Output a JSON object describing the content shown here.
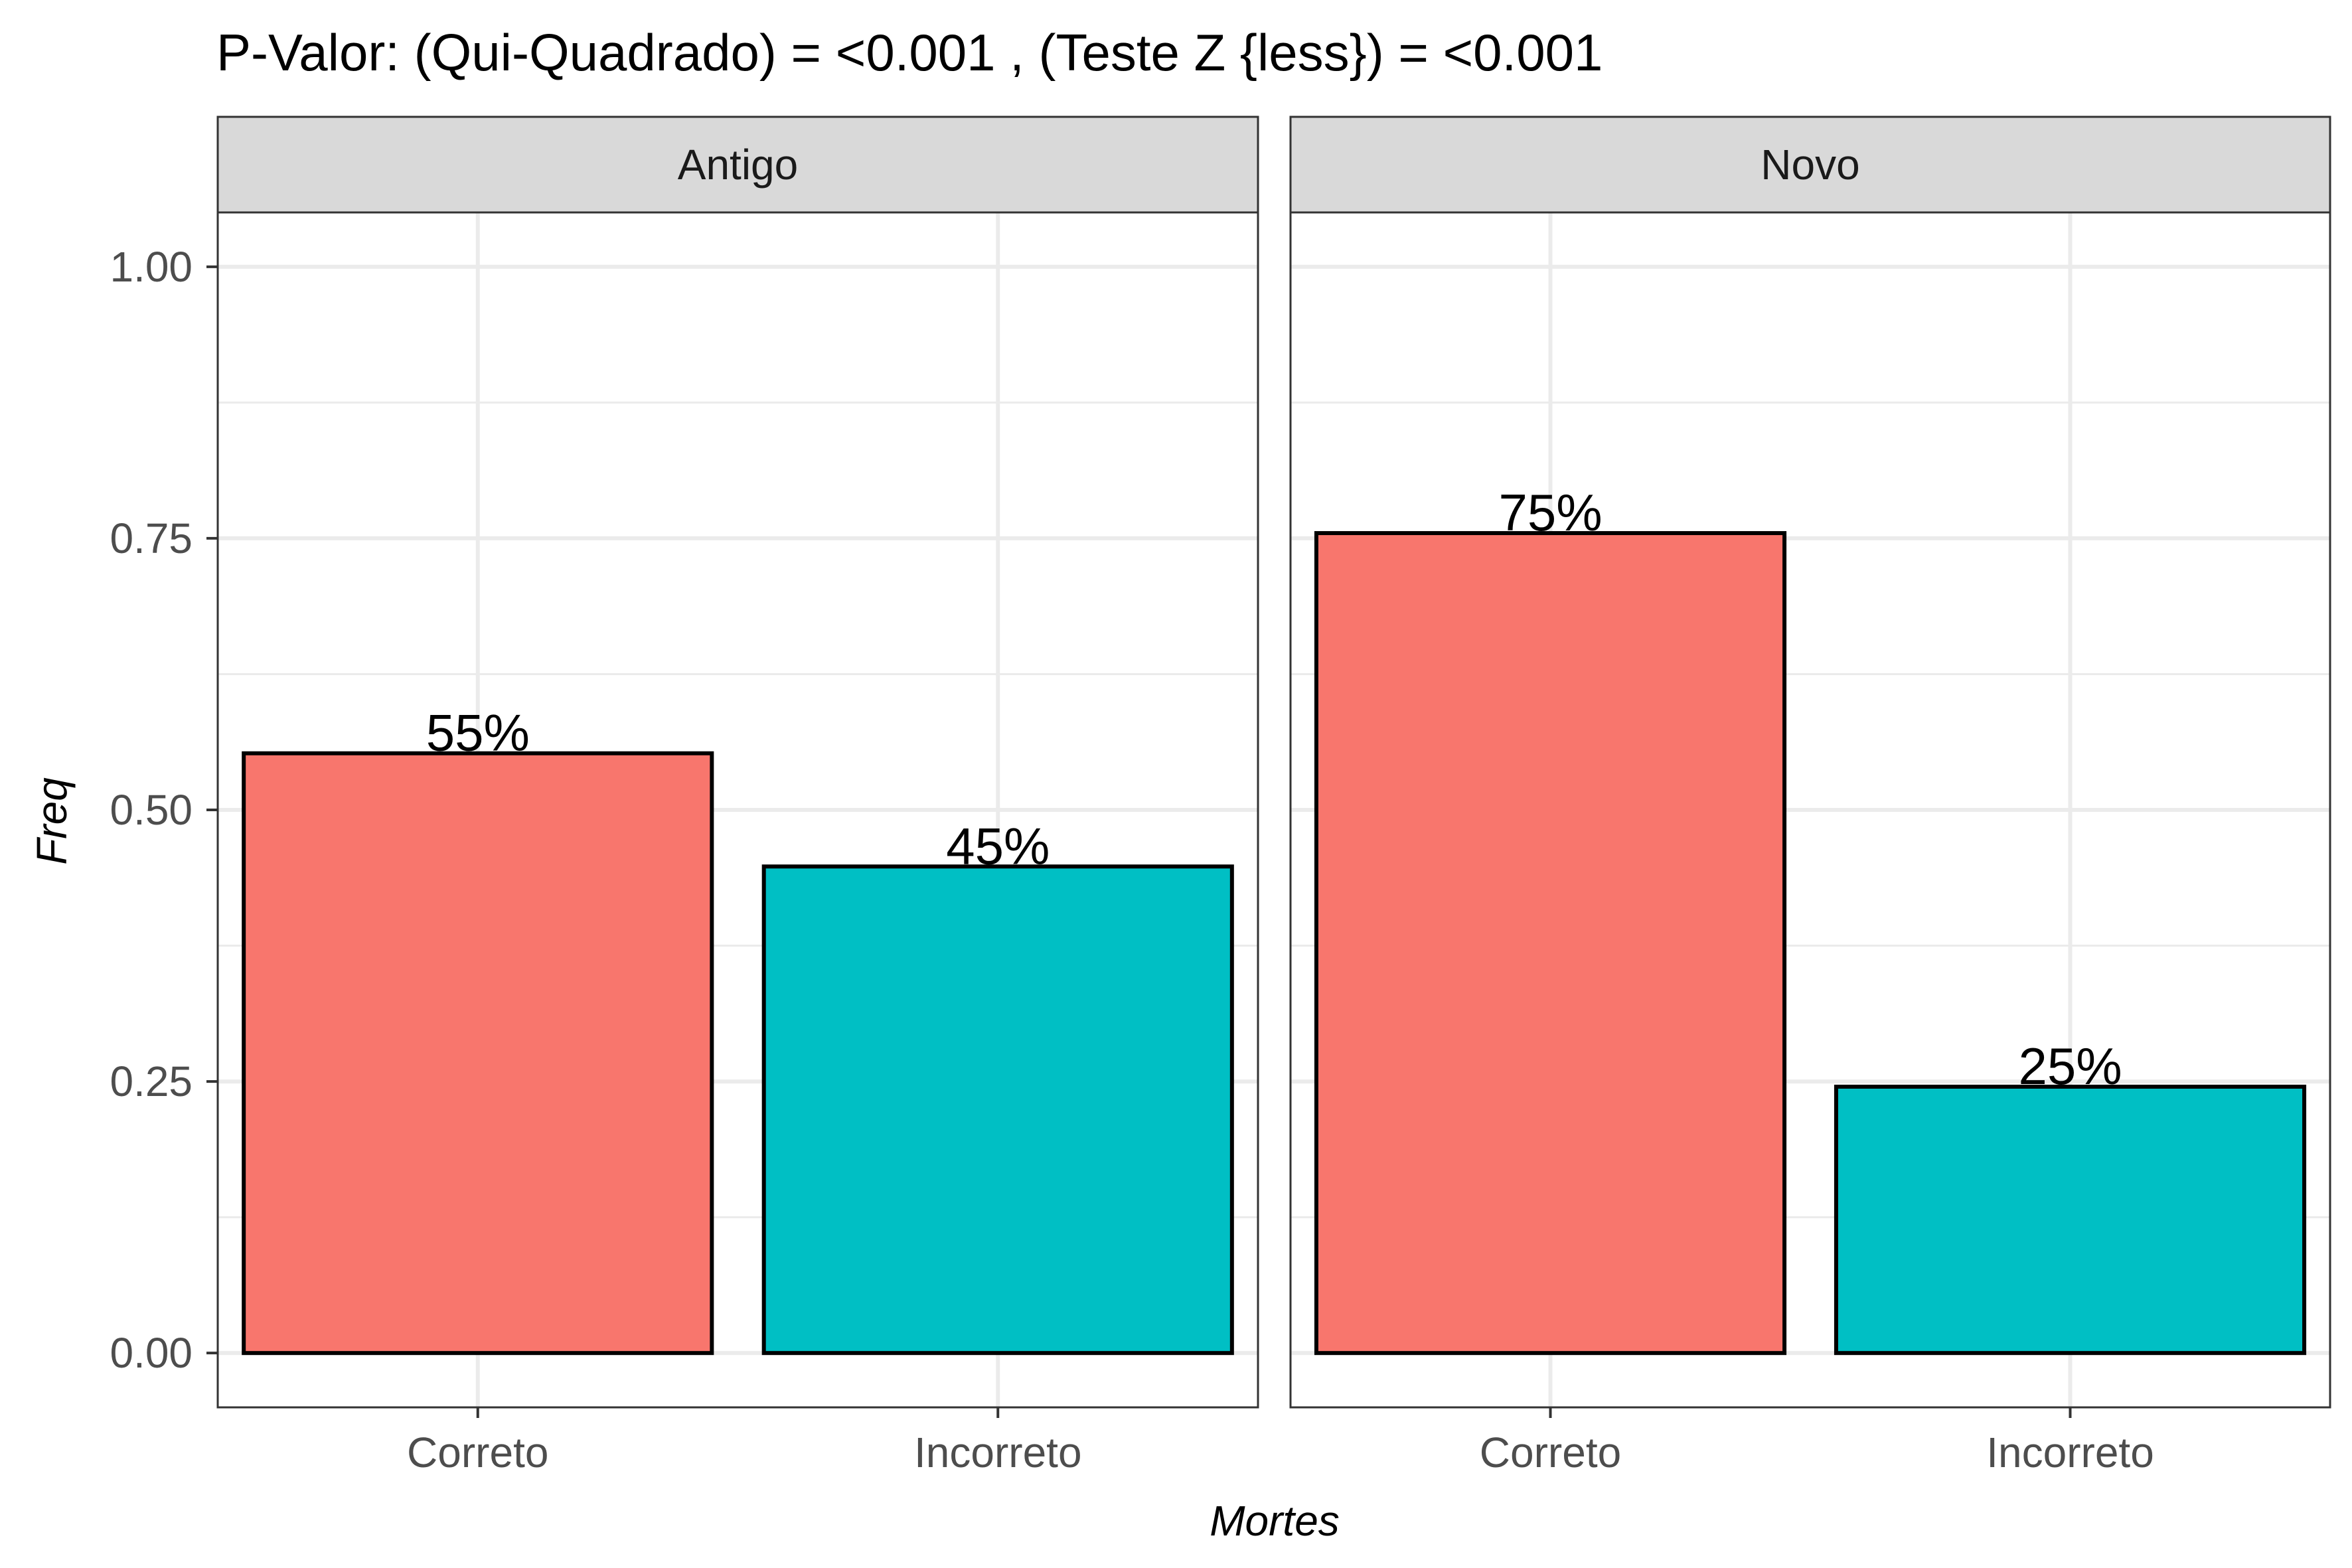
{
  "chart_data": {
    "type": "bar",
    "title": "P-Valor: (Qui-Quadrado) = <0.001 , (Teste Z {less}) = <0.001",
    "xlabel": "Mortes",
    "ylabel": "Freq",
    "ylim": [
      -0.05,
      1.05
    ],
    "yticks": [
      0,
      0.25,
      0.5,
      0.75,
      1
    ],
    "ytick_labels": [
      "0.00",
      "0.25",
      "0.50",
      "0.75",
      "1.00"
    ],
    "categories": [
      "Correto",
      "Incorreto"
    ],
    "grid": true,
    "legend": "none",
    "fill_colors": {
      "Correto": "#F8766D",
      "Incorreto": "#00BFC4"
    },
    "facets": [
      {
        "name": "Antigo",
        "values": [
          0.5521,
          0.4479
        ],
        "labels": [
          "55%",
          "45%"
        ]
      },
      {
        "name": "Novo",
        "values": [
          0.7548,
          0.2452
        ],
        "labels": [
          "75%",
          "25%"
        ]
      }
    ]
  }
}
